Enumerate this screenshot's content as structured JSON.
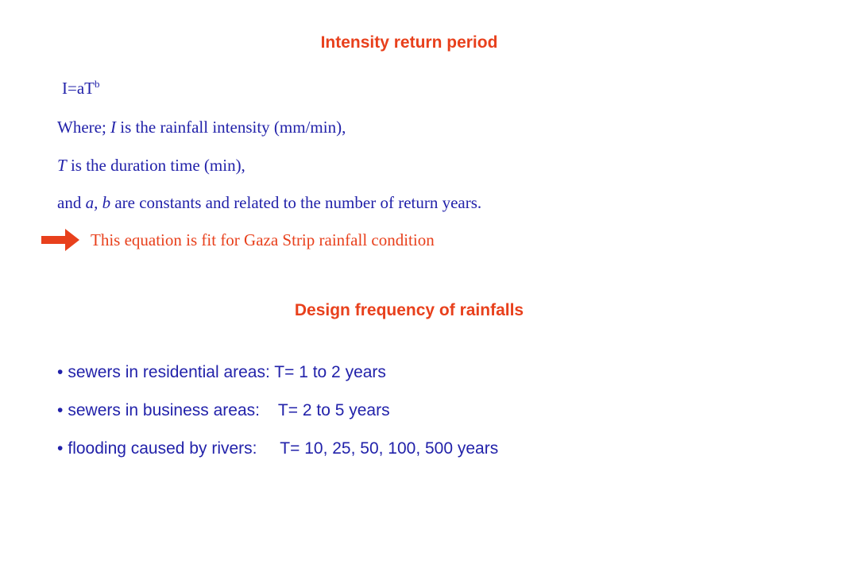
{
  "section1": {
    "title": "Intensity return period",
    "formula": {
      "base": "I=aT",
      "exponent": "b"
    },
    "where": {
      "prefix": "Where; ",
      "var": "I",
      "text": " is the rainfall intensity (mm/min),"
    },
    "tdef": {
      "var": "T",
      "text": " is the duration time (min),"
    },
    "consts": {
      "prefix": "and ",
      "var_a": "a,",
      "sep": " ",
      "var_b": "b",
      "text": " are constants and related to the number of return years."
    },
    "note": "This equation is fit for Gaza Strip rainfall condition"
  },
  "section2": {
    "title": "Design frequency of rainfalls",
    "bullet_char": "•",
    "items": [
      "sewers in residential areas: T= 1 to 2 years",
      "sewers in business areas:    T= 2 to 5 years",
      "flooding caused by rivers:     T= 10, 25, 50, 100, 500 years"
    ]
  },
  "colors": {
    "accent": "#e8401c",
    "body_text": "#2222aa",
    "background": "#ffffff"
  },
  "icons": {
    "note_marker": "right-arrow-icon"
  }
}
